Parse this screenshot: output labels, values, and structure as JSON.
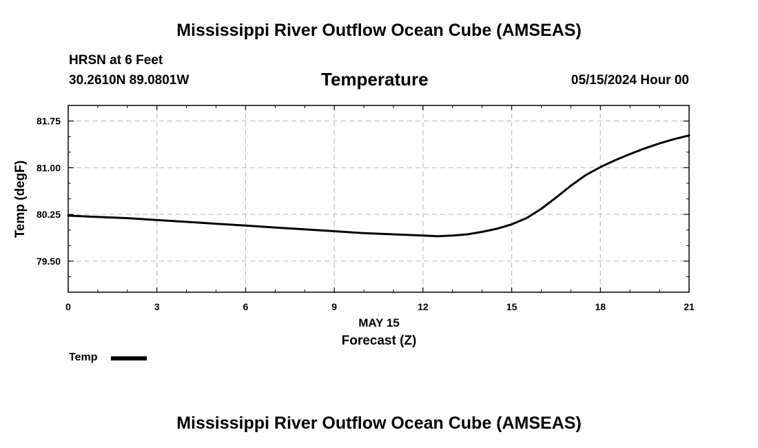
{
  "header": {
    "title": "Mississippi River Outflow Ocean Cube (AMSEAS)",
    "station": "HRSN at 6 Feet",
    "coords": "30.2610N  89.0801W",
    "datetime": "05/15/2024 Hour 00"
  },
  "footer": {
    "title": "Mississippi River Outflow Ocean Cube (AMSEAS)"
  },
  "chart_data": {
    "type": "line",
    "title": "Temperature",
    "xlabel": "Forecast (Z)",
    "xsublabel": "MAY 15",
    "ylabel": "Temp (degF)",
    "xlim": [
      0,
      21
    ],
    "ylim": [
      79.0,
      82.0
    ],
    "xticks": [
      0,
      3,
      6,
      9,
      12,
      15,
      18,
      21
    ],
    "xtick_labels": [
      "0",
      "3",
      "6",
      "9",
      "12",
      "15",
      "18",
      "21"
    ],
    "yticks": [
      79.5,
      80.25,
      81.0,
      81.75
    ],
    "ytick_labels": [
      "79.50",
      "80.25",
      "81.00",
      "81.75"
    ],
    "grid": true,
    "legend": "bottom-left",
    "series": [
      {
        "name": "Temp",
        "color": "#000000",
        "x": [
          0,
          1,
          2,
          3,
          4,
          5,
          6,
          7,
          8,
          9,
          10,
          11,
          12,
          12.5,
          13,
          13.5,
          14,
          14.5,
          15,
          15.5,
          16,
          16.5,
          17,
          17.5,
          18,
          18.5,
          19,
          19.5,
          20,
          20.5,
          21
        ],
        "y": [
          80.23,
          80.21,
          80.19,
          80.16,
          80.13,
          80.1,
          80.07,
          80.04,
          80.01,
          79.98,
          79.95,
          79.93,
          79.91,
          79.9,
          79.91,
          79.93,
          79.97,
          80.02,
          80.09,
          80.19,
          80.34,
          80.52,
          80.71,
          80.88,
          81.01,
          81.12,
          81.22,
          81.31,
          81.39,
          81.46,
          81.52
        ]
      }
    ]
  }
}
